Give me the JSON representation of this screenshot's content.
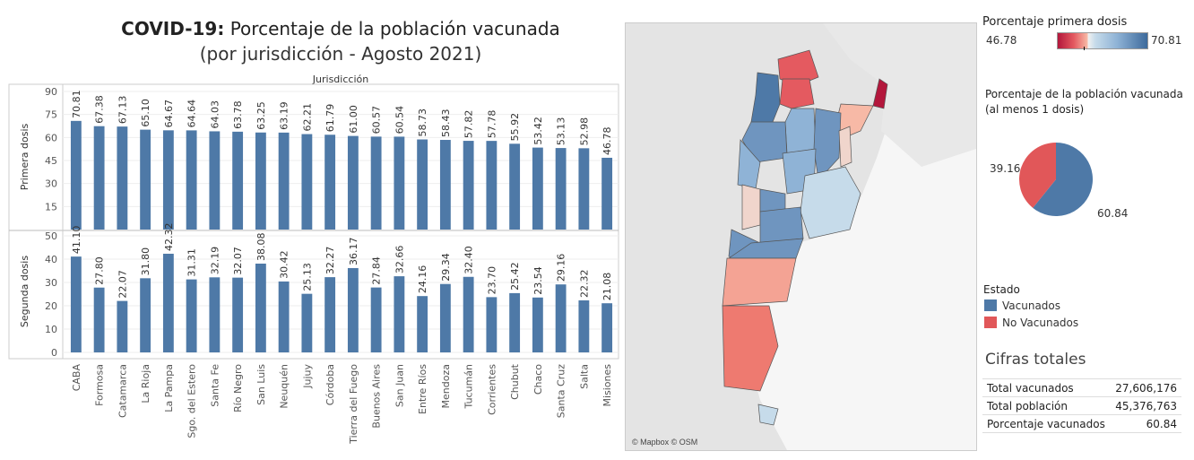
{
  "title": {
    "bold": "COVID-19:",
    "line1": "Porcentaje de la población vacunada",
    "line2": "(por jurisdicción - Agosto 2021)"
  },
  "chart_data": [
    {
      "type": "bar",
      "xlabel_top": "Jurisdicción",
      "ylabel": "Primera dosis",
      "ylim": [
        0,
        90
      ],
      "yticks": [
        15,
        30,
        45,
        60,
        75,
        90
      ],
      "categories": [
        "CABA",
        "Formosa",
        "Catamarca",
        "La Rioja",
        "La Pampa",
        "Sgo. del Estero",
        "Santa Fe",
        "Río Negro",
        "San Luis",
        "Neuquén",
        "Jujuy",
        "Córdoba",
        "Tierra del Fuego",
        "Buenos Aires",
        "San Juan",
        "Entre Ríos",
        "Mendoza",
        "Tucumán",
        "Corrientes",
        "Chubut",
        "Chaco",
        "Santa Cruz",
        "Salta",
        "Misiones"
      ],
      "values": [
        70.81,
        67.38,
        67.13,
        65.1,
        64.67,
        64.64,
        64.03,
        63.78,
        63.25,
        63.19,
        62.21,
        61.79,
        61.0,
        60.57,
        60.54,
        58.73,
        58.43,
        57.82,
        57.78,
        55.92,
        53.42,
        53.13,
        52.98,
        46.78
      ],
      "labels": [
        "70.81",
        "67.38",
        "67.13",
        "65.10",
        "64.67",
        "64.64",
        "64.03",
        "63.78",
        "63.25",
        "63.19",
        "62.21",
        "61.79",
        "61.00",
        "60.57",
        "60.54",
        "58.73",
        "58.43",
        "57.82",
        "57.78",
        "55.92",
        "53.42",
        "53.13",
        "52.98",
        "46.78"
      ],
      "color": "#4e79a7"
    },
    {
      "type": "bar",
      "ylabel": "Segunda dosis",
      "ylim": [
        0,
        50
      ],
      "yticks": [
        0,
        10,
        20,
        30,
        40,
        50
      ],
      "values": [
        41.1,
        27.8,
        22.07,
        31.8,
        42.32,
        31.31,
        32.19,
        32.07,
        38.08,
        30.42,
        25.13,
        32.27,
        36.17,
        27.84,
        32.66,
        24.16,
        29.34,
        32.4,
        23.7,
        25.42,
        23.54,
        29.16,
        22.32,
        21.08
      ],
      "labels": [
        "41.10",
        "27.80",
        "22.07",
        "31.80",
        "42.32",
        "31.31",
        "32.19",
        "32.07",
        "38.08",
        "30.42",
        "25.13",
        "32.27",
        "36.17",
        "27.84",
        "32.66",
        "24.16",
        "29.34",
        "32.40",
        "23.70",
        "25.42",
        "23.54",
        "29.16",
        "22.32",
        "21.08"
      ],
      "color": "#4e79a7"
    },
    {
      "type": "pie",
      "title": "Porcentaje de la población vacunada (al menos 1 dosis)",
      "slices": [
        {
          "name": "Vacunados",
          "value": 60.84,
          "label": "60.84",
          "color": "#4e79a7"
        },
        {
          "name": "No Vacunados",
          "value": 39.16,
          "label": "39.16",
          "color": "#e15759"
        }
      ]
    }
  ],
  "colorscale": {
    "title": "Porcentaje primera dosis",
    "min": "46.78",
    "max": "70.81"
  },
  "legend": {
    "title": "Estado",
    "items": [
      "Vacunados",
      "No Vacunados"
    ]
  },
  "map": {
    "credit": "© Mapbox © OSM"
  },
  "cifras": {
    "title": "Cifras totales",
    "rows": [
      {
        "label": "Total vacunados",
        "value": "27,606,176"
      },
      {
        "label": "Total población",
        "value": "45,376,763"
      },
      {
        "label": "Porcentaje vacunados",
        "value": "60.84"
      }
    ]
  }
}
